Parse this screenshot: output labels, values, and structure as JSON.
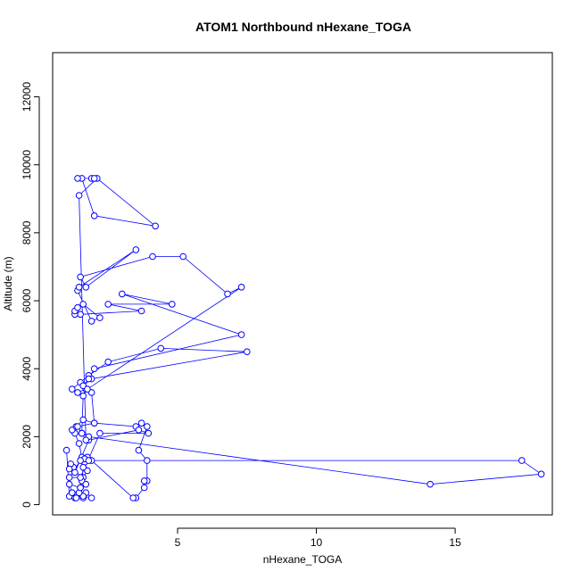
{
  "chart_data": {
    "type": "line",
    "title": "ATOM1 Northbound nHexane_TOGA",
    "xlabel": "nHexane_TOGA",
    "ylabel": "Altitude (m)",
    "xlim": [
      0.5,
      18.5
    ],
    "ylim": [
      -300,
      13300
    ],
    "x_ticks": [
      5,
      10,
      15
    ],
    "y_ticks": [
      0,
      2000,
      4000,
      6000,
      8000,
      10000,
      12000
    ],
    "marker": "open-circle",
    "line_color": "#0000ff",
    "series": [
      {
        "name": "nHexane_TOGA",
        "x": [
          1.0,
          1.1,
          1.3,
          1.4,
          1.6,
          1.7,
          1.9,
          1.6,
          1.45,
          1.35,
          1.2,
          1.1,
          1.5,
          1.6,
          1.75,
          1.65,
          1.55,
          1.45,
          1.3,
          1.2,
          1.35,
          1.6,
          2.0,
          3.5,
          3.7,
          3.9,
          3.6,
          3.9,
          3.9,
          3.8,
          3.8,
          3.5,
          3.4,
          1.9,
          1.75,
          1.65,
          1.6,
          1.55,
          1.5,
          1.7,
          1.25,
          1.15,
          1.1,
          1.3,
          1.8,
          3.6,
          3.95,
          2.2,
          1.5,
          1.1,
          1.5,
          1.8,
          17.4,
          18.1,
          14.1,
          1.8,
          1.55,
          1.4,
          2.0,
          1.9,
          1.7,
          1.4,
          1.2,
          1.5,
          1.8,
          2.5,
          4.4,
          7.5,
          1.9,
          1.6,
          1.8,
          2.0,
          7.3,
          3.0,
          4.8,
          2.5,
          3.7,
          1.5,
          1.3,
          1.3,
          1.4,
          1.6,
          2.2,
          1.9,
          1.4,
          1.45,
          3.5,
          1.7,
          1.5,
          4.1,
          5.2,
          6.8,
          7.3,
          1.75,
          1.6,
          1.55,
          1.7,
          1.45,
          2.1,
          4.2,
          2.0,
          1.55,
          1.4,
          1.9,
          2.0
        ],
        "y": [
          1600,
          250,
          200,
          300,
          200,
          350,
          200,
          250,
          350,
          200,
          350,
          600,
          500,
          800,
          1000,
          1250,
          1400,
          1800,
          2100,
          2200,
          2300,
          2500,
          2400,
          2300,
          2400,
          2300,
          1600,
          1300,
          700,
          700,
          500,
          200,
          200,
          1300,
          1400,
          1350,
          1100,
          700,
          500,
          600,
          1100,
          1200,
          1050,
          950,
          1900,
          2200,
          2100,
          2100,
          800,
          800,
          1300,
          1300,
          1300,
          900,
          600,
          2000,
          2100,
          2300,
          2400,
          3300,
          3400,
          3300,
          3400,
          3600,
          3800,
          4200,
          4600,
          4500,
          3700,
          3500,
          3700,
          4000,
          5000,
          6200,
          5900,
          5900,
          5700,
          5600,
          5600,
          5700,
          5800,
          5900,
          5500,
          5400,
          6300,
          6400,
          7500,
          6400,
          6700,
          7300,
          7300,
          6200,
          6400,
          3400,
          3200,
          2100,
          1900,
          9100,
          9600,
          8200,
          8500,
          9600,
          9600,
          9600,
          9600
        ]
      }
    ]
  }
}
